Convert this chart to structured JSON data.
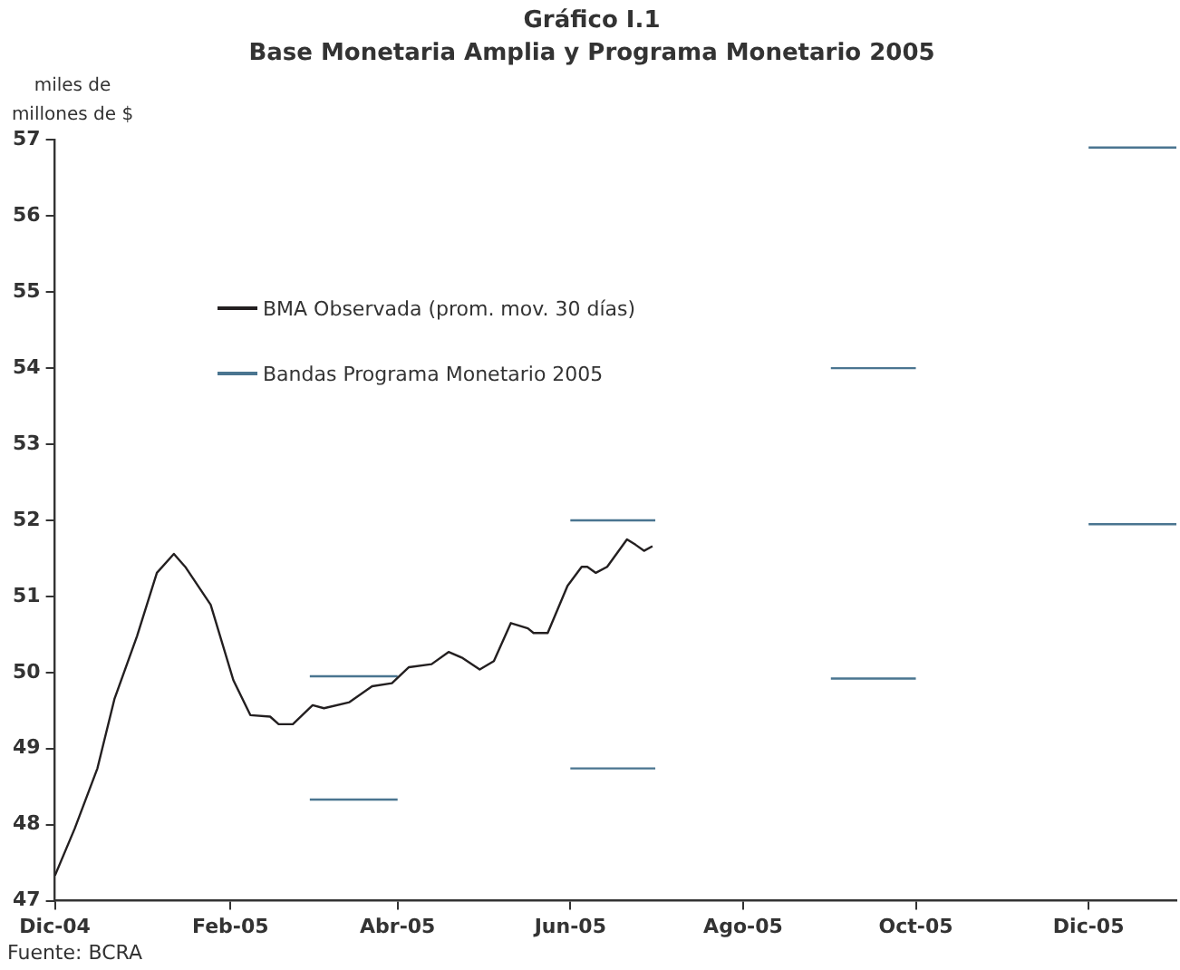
{
  "chart_data": {
    "type": "line",
    "title": "Gráfico I.1",
    "subtitle": "Base Monetaria Amplia y Programa Monetario 2005",
    "ylabel": "miles de millones de $",
    "annotations": [
      "Fuente: BCRA"
    ],
    "xlim": [
      "2004-12-01",
      "2006-01-01"
    ],
    "xticks": [
      {
        "value": "2004-12-01",
        "label": "Dic-04"
      },
      {
        "value": "2005-02-01",
        "label": "Feb-05"
      },
      {
        "value": "2005-04-01",
        "label": "Abr-05"
      },
      {
        "value": "2005-06-01",
        "label": "Jun-05"
      },
      {
        "value": "2005-08-01",
        "label": "Ago-05"
      },
      {
        "value": "2005-10-01",
        "label": "Oct-05"
      },
      {
        "value": "2005-12-01",
        "label": "Dic-05"
      }
    ],
    "ylim": [
      47,
      57
    ],
    "yticks": [
      47,
      48,
      49,
      50,
      51,
      52,
      53,
      54,
      55,
      56,
      57
    ],
    "grid": false,
    "legend": "top left",
    "marker": "none",
    "series": [
      {
        "name": "BMA Observada (prom. mov. 30 días)",
        "color": "#231f20",
        "x": [
          "2004-12-01",
          "2004-12-08",
          "2004-12-16",
          "2004-12-22",
          "2004-12-30",
          "2005-01-06",
          "2005-01-12",
          "2005-01-16",
          "2005-01-25",
          "2005-02-02",
          "2005-02-08",
          "2005-02-15",
          "2005-02-18",
          "2005-02-23",
          "2005-03-02",
          "2005-03-06",
          "2005-03-15",
          "2005-03-23",
          "2005-03-30",
          "2005-04-05",
          "2005-04-13",
          "2005-04-19",
          "2005-04-24",
          "2005-04-30",
          "2005-05-05",
          "2005-05-11",
          "2005-05-17",
          "2005-05-19",
          "2005-05-24",
          "2005-05-31",
          "2005-06-05",
          "2005-06-07",
          "2005-06-10",
          "2005-06-14",
          "2005-06-21",
          "2005-06-24",
          "2005-06-27",
          "2005-06-30"
        ],
        "values": [
          47.33,
          47.95,
          48.74,
          49.65,
          50.48,
          51.31,
          51.56,
          51.39,
          50.89,
          49.9,
          49.44,
          49.42,
          49.32,
          49.32,
          49.57,
          49.53,
          49.61,
          49.82,
          49.86,
          50.07,
          50.11,
          50.27,
          50.19,
          50.04,
          50.15,
          50.65,
          50.58,
          50.52,
          50.52,
          51.14,
          51.39,
          51.39,
          51.31,
          51.39,
          51.75,
          51.68,
          51.6,
          51.66
        ]
      },
      {
        "name": "Bandas Programa Monetario 2005",
        "color": "#4a7590",
        "x": [
          "2005-03-01",
          "2005-04-01",
          "2005-05-01",
          "2005-06-01",
          "2005-07-01",
          "2005-08-01",
          "2005-09-01",
          "2005-10-01",
          "2005-11-01",
          "2005-12-01",
          "2006-01-01"
        ],
        "values": [
          49.95,
          49.95,
          null,
          52.0,
          52.0,
          null,
          54.0,
          54.0,
          null,
          56.9,
          56.9
        ]
      },
      {
        "color": "#4a7590",
        "x": [
          "2005-03-01",
          "2005-04-01",
          "2005-05-01",
          "2005-06-01",
          "2005-07-01",
          "2005-08-01",
          "2005-09-01",
          "2005-10-01",
          "2005-11-01",
          "2005-12-01",
          "2006-01-01"
        ],
        "values": [
          48.33,
          48.33,
          null,
          48.74,
          48.74,
          null,
          49.92,
          49.92,
          null,
          51.95,
          51.95
        ]
      }
    ]
  }
}
